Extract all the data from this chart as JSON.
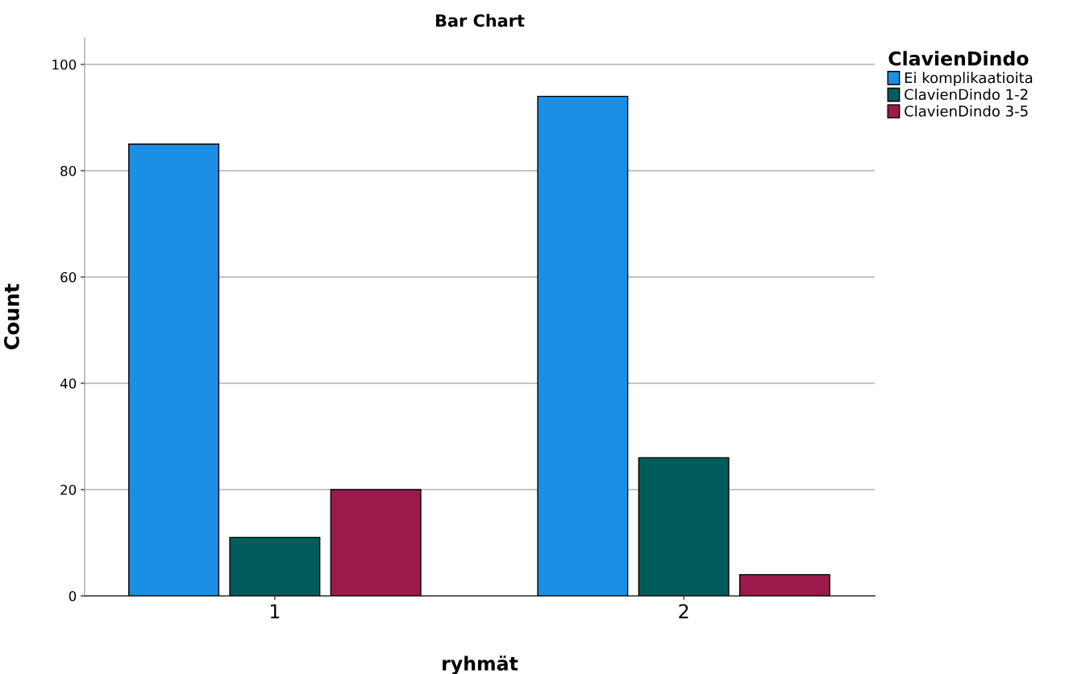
{
  "chart_data": {
    "type": "bar",
    "title": "Bar Chart",
    "xlabel": "ryhmät",
    "ylabel": "Count",
    "legend_title": "ClavienDindo",
    "categories": [
      "1",
      "2"
    ],
    "series": [
      {
        "name": "Ei komplikaatioita",
        "color": "#1a8fe3",
        "values": [
          85,
          94
        ]
      },
      {
        "name": "ClavienDindo 1-2",
        "color": "#005c5a",
        "values": [
          11,
          26
        ]
      },
      {
        "name": "ClavienDindo 3-5",
        "color": "#9c1a4b",
        "values": [
          20,
          4
        ]
      }
    ],
    "ylim": [
      0,
      105
    ],
    "yticks": [
      0,
      20,
      40,
      60,
      80,
      100
    ],
    "grid": "y",
    "legend": "top right"
  }
}
